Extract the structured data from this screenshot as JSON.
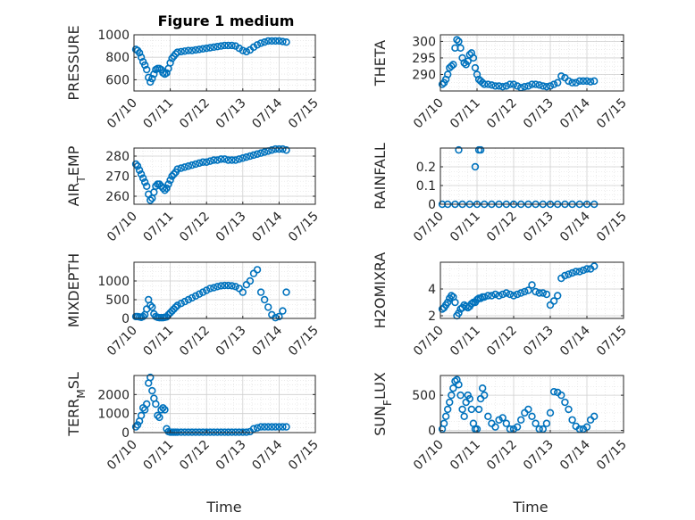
{
  "figure": {
    "title": "Figure 1 medium",
    "xlabel": "Time",
    "x_ticks": [
      "07/10",
      "07/11",
      "07/12",
      "07/13",
      "07/14",
      "07/15"
    ],
    "marker_color": "#0072BD",
    "axis_color": "#262626",
    "grid_color": "#dedede"
  },
  "chart_data": [
    {
      "type": "scatter",
      "ylabel": "PRESSURE",
      "ylim": [
        500,
        1000
      ],
      "yticks": [
        600,
        800,
        1000
      ],
      "x": [
        0.05,
        0.1,
        0.15,
        0.2,
        0.25,
        0.3,
        0.35,
        0.4,
        0.45,
        0.5,
        0.55,
        0.6,
        0.65,
        0.7,
        0.75,
        0.8,
        0.85,
        0.9,
        0.95,
        1.0,
        1.05,
        1.1,
        1.15,
        1.2,
        1.3,
        1.4,
        1.5,
        1.6,
        1.7,
        1.8,
        1.9,
        2.0,
        2.1,
        2.2,
        2.3,
        2.4,
        2.5,
        2.6,
        2.7,
        2.8,
        2.9,
        3.0,
        3.1,
        3.2,
        3.3,
        3.4,
        3.5,
        3.6,
        3.7,
        3.8,
        3.9,
        4.0,
        4.1,
        4.2
      ],
      "y": [
        870,
        860,
        840,
        800,
        760,
        730,
        690,
        620,
        580,
        610,
        650,
        690,
        700,
        700,
        690,
        660,
        650,
        660,
        700,
        750,
        790,
        810,
        830,
        845,
        850,
        855,
        860,
        860,
        865,
        870,
        875,
        880,
        885,
        890,
        895,
        900,
        905,
        905,
        905,
        900,
        880,
        860,
        850,
        865,
        890,
        910,
        925,
        935,
        945,
        945,
        945,
        945,
        940,
        935
      ]
    },
    {
      "type": "scatter",
      "ylabel": "THETA",
      "ylim": [
        285,
        302
      ],
      "yticks": [
        290,
        295,
        300
      ],
      "x": [
        0.05,
        0.1,
        0.15,
        0.2,
        0.25,
        0.3,
        0.35,
        0.4,
        0.45,
        0.5,
        0.55,
        0.6,
        0.65,
        0.7,
        0.75,
        0.8,
        0.85,
        0.9,
        0.95,
        1.0,
        1.05,
        1.1,
        1.15,
        1.2,
        1.3,
        1.4,
        1.5,
        1.6,
        1.7,
        1.8,
        1.9,
        2.0,
        2.1,
        2.2,
        2.3,
        2.4,
        2.5,
        2.6,
        2.7,
        2.8,
        2.9,
        3.0,
        3.1,
        3.2,
        3.3,
        3.4,
        3.5,
        3.6,
        3.7,
        3.8,
        3.9,
        4.0,
        4.1,
        4.2
      ],
      "y": [
        287,
        287.5,
        288.5,
        290,
        292,
        292.5,
        293,
        298,
        300.5,
        300,
        298,
        295,
        293.5,
        293,
        294,
        296,
        296.5,
        295,
        292,
        290,
        288.5,
        288,
        287.5,
        287,
        287,
        286.8,
        286.5,
        286.5,
        286.3,
        286.5,
        287,
        287,
        286.5,
        286,
        286.3,
        286.5,
        287,
        287,
        286.8,
        286.5,
        286.3,
        286.5,
        287,
        287.5,
        289.5,
        289,
        288,
        287.5,
        287.5,
        288,
        288,
        288,
        287.8,
        288
      ]
    },
    {
      "type": "scatter",
      "ylabel": "AIR_TEMP",
      "ylim": [
        256,
        284
      ],
      "yticks": [
        260,
        270,
        280
      ],
      "x": [
        0.05,
        0.1,
        0.15,
        0.2,
        0.25,
        0.3,
        0.35,
        0.4,
        0.45,
        0.5,
        0.55,
        0.6,
        0.65,
        0.7,
        0.75,
        0.8,
        0.85,
        0.9,
        0.95,
        1.0,
        1.05,
        1.1,
        1.15,
        1.2,
        1.3,
        1.4,
        1.5,
        1.6,
        1.7,
        1.8,
        1.9,
        2.0,
        2.1,
        2.2,
        2.3,
        2.4,
        2.5,
        2.6,
        2.7,
        2.8,
        2.9,
        3.0,
        3.1,
        3.2,
        3.3,
        3.4,
        3.5,
        3.6,
        3.7,
        3.8,
        3.9,
        4.0,
        4.1,
        4.2
      ],
      "y": [
        276,
        275,
        273,
        271,
        269,
        267,
        265,
        261,
        258,
        259,
        262,
        265,
        266,
        266,
        265,
        264,
        263,
        264,
        266,
        268,
        270,
        271,
        272,
        273.5,
        274,
        274.5,
        275,
        275.5,
        276,
        276.5,
        277,
        277,
        277.5,
        278,
        278,
        278.5,
        278.5,
        278,
        278,
        278,
        278.5,
        279,
        279.5,
        280,
        280.5,
        281,
        281.5,
        282,
        282.5,
        283,
        283.5,
        283.5,
        283.5,
        283
      ]
    },
    {
      "type": "scatter",
      "ylabel": "RAINFALL",
      "ylim": [
        0,
        0.3
      ],
      "yticks": [
        0,
        0.1,
        0.2
      ],
      "x": [
        0.05,
        0.2,
        0.4,
        0.6,
        0.8,
        1.0,
        1.2,
        1.4,
        1.6,
        1.8,
        2.0,
        2.2,
        2.4,
        2.6,
        2.8,
        3.0,
        3.2,
        3.4,
        3.6,
        3.8,
        4.0,
        4.2,
        0.5,
        0.95,
        1.05,
        1.1
      ],
      "y": [
        0,
        0,
        0,
        0,
        0,
        0,
        0,
        0,
        0,
        0,
        0,
        0,
        0,
        0,
        0,
        0,
        0,
        0,
        0,
        0,
        0,
        0,
        0.29,
        0.2,
        0.29,
        0.29
      ]
    },
    {
      "type": "scatter",
      "ylabel": "MIXDEPTH",
      "ylim": [
        0,
        1500
      ],
      "yticks": [
        0,
        500,
        1000
      ],
      "x": [
        0.05,
        0.1,
        0.15,
        0.2,
        0.25,
        0.3,
        0.35,
        0.4,
        0.45,
        0.5,
        0.55,
        0.6,
        0.65,
        0.7,
        0.75,
        0.8,
        0.85,
        0.9,
        0.95,
        1.0,
        1.05,
        1.1,
        1.15,
        1.2,
        1.3,
        1.4,
        1.5,
        1.6,
        1.7,
        1.8,
        1.9,
        2.0,
        2.1,
        2.2,
        2.3,
        2.4,
        2.5,
        2.6,
        2.7,
        2.8,
        2.9,
        3.0,
        3.1,
        3.2,
        3.3,
        3.4,
        3.5,
        3.6,
        3.7,
        3.8,
        3.9,
        4.0,
        4.1,
        4.2
      ],
      "y": [
        50,
        50,
        40,
        30,
        50,
        100,
        250,
        500,
        350,
        300,
        120,
        50,
        30,
        20,
        20,
        20,
        30,
        40,
        100,
        150,
        200,
        250,
        300,
        350,
        400,
        450,
        500,
        550,
        600,
        650,
        700,
        750,
        800,
        820,
        850,
        870,
        880,
        880,
        870,
        850,
        800,
        700,
        900,
        1000,
        1200,
        1300,
        700,
        500,
        300,
        100,
        20,
        50,
        200,
        700
      ]
    },
    {
      "type": "scatter",
      "ylabel": "H2OMIXRA",
      "ylim": [
        1.8,
        6
      ],
      "yticks": [
        2,
        4
      ],
      "x": [
        0.05,
        0.1,
        0.15,
        0.2,
        0.25,
        0.3,
        0.35,
        0.4,
        0.45,
        0.5,
        0.55,
        0.6,
        0.65,
        0.7,
        0.75,
        0.8,
        0.85,
        0.9,
        0.95,
        1.0,
        1.05,
        1.1,
        1.15,
        1.2,
        1.3,
        1.4,
        1.5,
        1.6,
        1.7,
        1.8,
        1.9,
        2.0,
        2.1,
        2.2,
        2.3,
        2.4,
        2.5,
        2.6,
        2.7,
        2.8,
        2.9,
        3.0,
        3.1,
        3.2,
        3.3,
        3.4,
        3.5,
        3.6,
        3.7,
        3.8,
        3.9,
        4.0,
        4.1,
        4.2
      ],
      "y": [
        2.5,
        2.6,
        2.8,
        3.0,
        3.3,
        3.5,
        3.4,
        3.0,
        2.0,
        2.2,
        2.5,
        2.6,
        2.8,
        2.7,
        2.6,
        2.7,
        2.9,
        3.0,
        3.0,
        3.2,
        3.3,
        3.3,
        3.4,
        3.4,
        3.5,
        3.5,
        3.6,
        3.5,
        3.6,
        3.7,
        3.6,
        3.5,
        3.6,
        3.7,
        3.8,
        3.9,
        4.3,
        3.8,
        3.7,
        3.7,
        3.6,
        2.8,
        3.1,
        3.5,
        4.8,
        5.0,
        5.1,
        5.2,
        5.3,
        5.3,
        5.4,
        5.5,
        5.5,
        5.7
      ]
    },
    {
      "type": "scatter",
      "ylabel": "TERR_MSL",
      "ylim": [
        0,
        3000
      ],
      "yticks": [
        0,
        1000,
        2000
      ],
      "x": [
        0.05,
        0.1,
        0.15,
        0.2,
        0.25,
        0.3,
        0.35,
        0.4,
        0.45,
        0.5,
        0.55,
        0.6,
        0.65,
        0.7,
        0.75,
        0.8,
        0.85,
        0.9,
        0.95,
        1.0,
        1.05,
        1.1,
        1.15,
        1.2,
        1.3,
        1.4,
        1.5,
        1.6,
        1.7,
        1.8,
        1.9,
        2.0,
        2.1,
        2.2,
        2.3,
        2.4,
        2.5,
        2.6,
        2.7,
        2.8,
        2.9,
        3.0,
        3.1,
        3.2,
        3.3,
        3.4,
        3.5,
        3.6,
        3.7,
        3.8,
        3.9,
        4.0,
        4.1,
        4.2
      ],
      "y": [
        300,
        400,
        600,
        900,
        1300,
        1200,
        1500,
        2600,
        2900,
        2200,
        1800,
        1500,
        900,
        800,
        1200,
        1300,
        1200,
        200,
        50,
        20,
        20,
        20,
        20,
        20,
        20,
        20,
        20,
        20,
        20,
        20,
        20,
        20,
        20,
        20,
        20,
        20,
        20,
        20,
        20,
        20,
        20,
        20,
        20,
        50,
        200,
        250,
        300,
        300,
        300,
        300,
        300,
        300,
        300,
        300
      ]
    },
    {
      "type": "scatter",
      "ylabel": "SUN_FLUX",
      "ylim": [
        -30,
        780
      ],
      "yticks": [
        0,
        500
      ],
      "x": [
        0.05,
        0.1,
        0.15,
        0.2,
        0.25,
        0.3,
        0.35,
        0.4,
        0.45,
        0.5,
        0.55,
        0.6,
        0.65,
        0.7,
        0.75,
        0.8,
        0.85,
        0.9,
        0.95,
        1.0,
        1.05,
        1.1,
        1.15,
        1.2,
        1.3,
        1.4,
        1.5,
        1.6,
        1.7,
        1.8,
        1.9,
        2.0,
        2.1,
        2.2,
        2.3,
        2.4,
        2.5,
        2.6,
        2.7,
        2.8,
        2.9,
        3.0,
        3.1,
        3.2,
        3.3,
        3.4,
        3.5,
        3.6,
        3.7,
        3.8,
        3.9,
        4.0,
        4.1,
        4.2
      ],
      "y": [
        20,
        100,
        200,
        300,
        400,
        500,
        600,
        700,
        720,
        650,
        500,
        300,
        200,
        400,
        500,
        450,
        300,
        100,
        20,
        20,
        300,
        450,
        600,
        500,
        200,
        100,
        50,
        150,
        180,
        100,
        20,
        20,
        50,
        150,
        250,
        300,
        200,
        100,
        20,
        20,
        100,
        250,
        550,
        540,
        500,
        400,
        300,
        150,
        60,
        20,
        20,
        50,
        150,
        200
      ]
    }
  ]
}
